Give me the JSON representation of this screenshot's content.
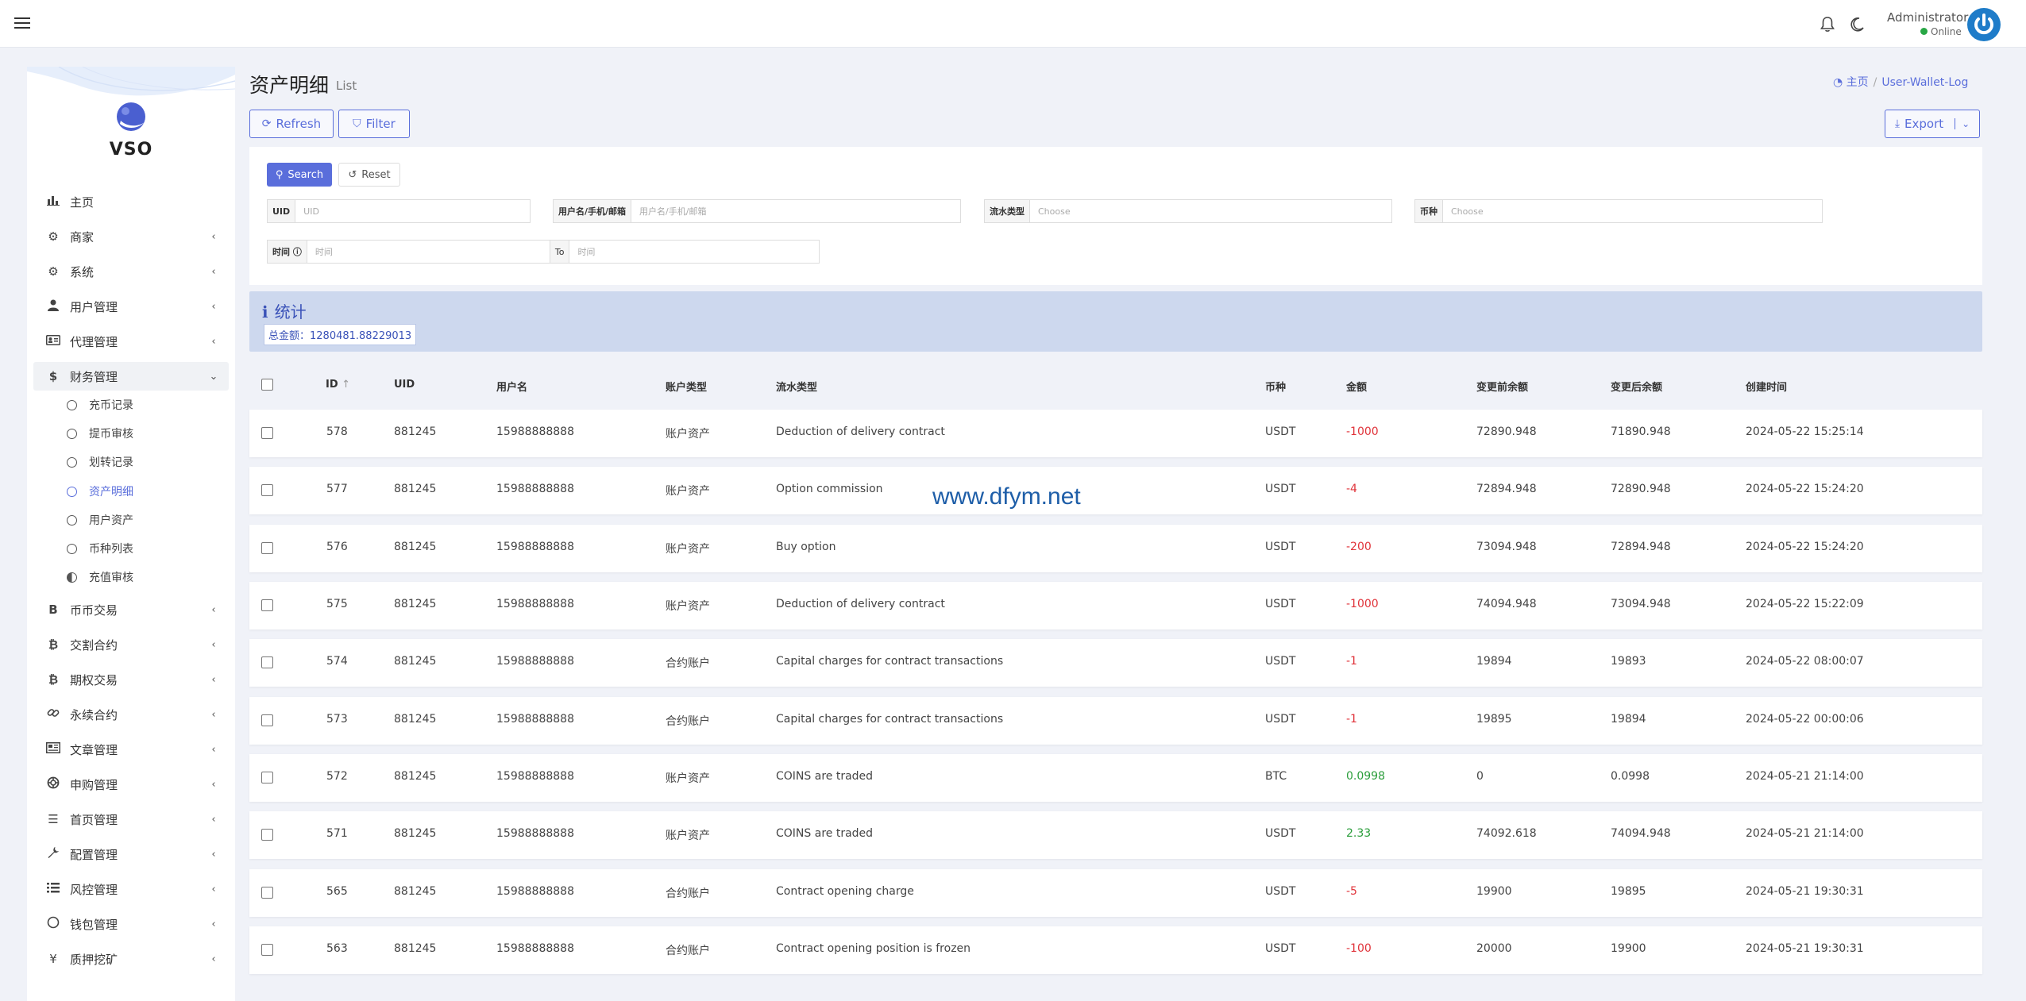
{
  "header": {
    "admin_name": "Administrator",
    "admin_status": "Online"
  },
  "sidebar": {
    "logo_text": "VSO",
    "items": [
      {
        "label": "主页",
        "icon": "bar-chart-icon",
        "chev": ""
      },
      {
        "label": "商家",
        "icon": "users-gear-icon",
        "chev": "‹"
      },
      {
        "label": "系统",
        "icon": "gear-icon",
        "chev": "‹"
      },
      {
        "label": "用户管理",
        "icon": "user-tie-icon",
        "chev": "‹"
      },
      {
        "label": "代理管理",
        "icon": "id-card-icon",
        "chev": "‹"
      },
      {
        "label": "财务管理",
        "icon": "dollar-icon",
        "chev": "⌄"
      }
    ],
    "sub_items": [
      {
        "label": "充币记录"
      },
      {
        "label": "提币审核"
      },
      {
        "label": "划转记录"
      },
      {
        "label": "资产明细"
      },
      {
        "label": "用户资产"
      },
      {
        "label": "币种列表"
      },
      {
        "label": "充值审核"
      }
    ],
    "items2": [
      {
        "label": "币币交易",
        "icon": "bitcoin-b-icon"
      },
      {
        "label": "交割合约",
        "icon": "bitcoin-icon"
      },
      {
        "label": "期权交易",
        "icon": "bitcoin-icon"
      },
      {
        "label": "永续合约",
        "icon": "link-icon"
      },
      {
        "label": "文章管理",
        "icon": "newspaper-icon"
      },
      {
        "label": "申购管理",
        "icon": "life-ring-icon"
      },
      {
        "label": "首页管理",
        "icon": "list-icon"
      },
      {
        "label": "配置管理",
        "icon": "wrench-icon"
      },
      {
        "label": "风控管理",
        "icon": "list-ul-icon"
      },
      {
        "label": "钱包管理",
        "icon": "circle-icon"
      },
      {
        "label": "质押挖矿",
        "icon": "yen-icon"
      }
    ]
  },
  "page": {
    "title": "资产明细",
    "subtitle": "List",
    "breadcrumb_home": "主页",
    "breadcrumb_current": "User-Wallet-Log"
  },
  "toolbar": {
    "refresh": "Refresh",
    "filter": "Filter",
    "export": "Export"
  },
  "filter": {
    "search": "Search",
    "reset": "Reset",
    "uid_label": "UID",
    "uid_placeholder": "UID",
    "user_label": "用户名/手机/邮箱",
    "user_placeholder": "用户名/手机/邮箱",
    "type_label": "流水类型",
    "type_placeholder": "Choose",
    "coin_label": "币种",
    "coin_placeholder": "Choose",
    "time_label": "时间 ⓘ",
    "time_placeholder": "时间",
    "to_label": "To",
    "to_placeholder": "时间"
  },
  "stats": {
    "title": "统计",
    "total": "总金额：1280481.88229013"
  },
  "table": {
    "headers": {
      "id": "ID",
      "uid": "UID",
      "username": "用户名",
      "account_type": "账户类型",
      "flow_type": "流水类型",
      "coin": "币种",
      "amount": "金额",
      "before": "变更前余额",
      "after": "变更后余额",
      "created": "创建时间"
    },
    "rows": [
      {
        "id": "578",
        "uid": "881245",
        "username": "15988888888",
        "account_type": "账户资产",
        "flow_type": "Deduction of delivery contract",
        "coin": "USDT",
        "amount": "-1000",
        "sign": "neg",
        "before": "72890.948",
        "after": "71890.948",
        "created": "2024-05-22 15:25:14"
      },
      {
        "id": "577",
        "uid": "881245",
        "username": "15988888888",
        "account_type": "账户资产",
        "flow_type": "Option commission",
        "coin": "USDT",
        "amount": "-4",
        "sign": "neg",
        "before": "72894.948",
        "after": "72890.948",
        "created": "2024-05-22 15:24:20"
      },
      {
        "id": "576",
        "uid": "881245",
        "username": "15988888888",
        "account_type": "账户资产",
        "flow_type": "Buy option",
        "coin": "USDT",
        "amount": "-200",
        "sign": "neg",
        "before": "73094.948",
        "after": "72894.948",
        "created": "2024-05-22 15:24:20"
      },
      {
        "id": "575",
        "uid": "881245",
        "username": "15988888888",
        "account_type": "账户资产",
        "flow_type": "Deduction of delivery contract",
        "coin": "USDT",
        "amount": "-1000",
        "sign": "neg",
        "before": "74094.948",
        "after": "73094.948",
        "created": "2024-05-22 15:22:09"
      },
      {
        "id": "574",
        "uid": "881245",
        "username": "15988888888",
        "account_type": "合约账户",
        "flow_type": "Capital charges for contract transactions",
        "coin": "USDT",
        "amount": "-1",
        "sign": "neg",
        "before": "19894",
        "after": "19893",
        "created": "2024-05-22 08:00:07"
      },
      {
        "id": "573",
        "uid": "881245",
        "username": "15988888888",
        "account_type": "合约账户",
        "flow_type": "Capital charges for contract transactions",
        "coin": "USDT",
        "amount": "-1",
        "sign": "neg",
        "before": "19895",
        "after": "19894",
        "created": "2024-05-22 00:00:06"
      },
      {
        "id": "572",
        "uid": "881245",
        "username": "15988888888",
        "account_type": "账户资产",
        "flow_type": "COINS are traded",
        "coin": "BTC",
        "amount": "0.0998",
        "sign": "pos",
        "before": "0",
        "after": "0.0998",
        "created": "2024-05-21 21:14:00"
      },
      {
        "id": "571",
        "uid": "881245",
        "username": "15988888888",
        "account_type": "账户资产",
        "flow_type": "COINS are traded",
        "coin": "USDT",
        "amount": "2.33",
        "sign": "pos",
        "before": "74092.618",
        "after": "74094.948",
        "created": "2024-05-21 21:14:00"
      },
      {
        "id": "565",
        "uid": "881245",
        "username": "15988888888",
        "account_type": "合约账户",
        "flow_type": "Contract opening charge",
        "coin": "USDT",
        "amount": "-5",
        "sign": "neg",
        "before": "19900",
        "after": "19895",
        "created": "2024-05-21 19:30:31"
      },
      {
        "id": "563",
        "uid": "881245",
        "username": "15988888888",
        "account_type": "合约账户",
        "flow_type": "Contract opening position is frozen",
        "coin": "USDT",
        "amount": "-100",
        "sign": "neg",
        "before": "20000",
        "after": "19900",
        "created": "2024-05-21 19:30:31"
      }
    ]
  },
  "watermark": "www.dfym.net",
  "colors": {
    "accent": "#5a6edb",
    "negative": "#e0333a",
    "positive": "#2a9d3a",
    "stats_bg": "#cdd8ee"
  }
}
